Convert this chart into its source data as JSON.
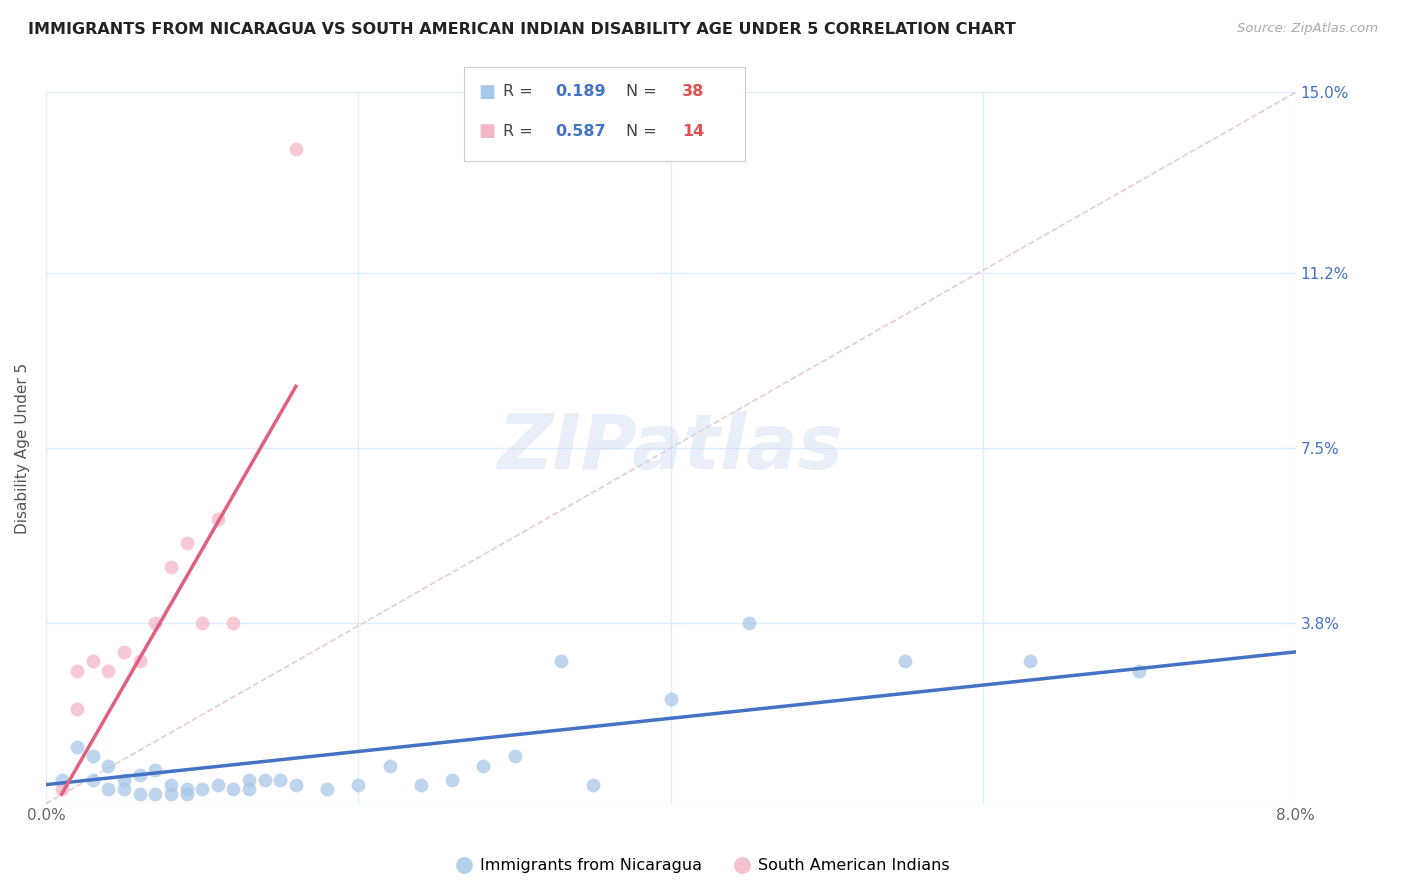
{
  "title": "IMMIGRANTS FROM NICARAGUA VS SOUTH AMERICAN INDIAN DISABILITY AGE UNDER 5 CORRELATION CHART",
  "source": "Source: ZipAtlas.com",
  "ylabel": "Disability Age Under 5",
  "xlim": [
    0.0,
    0.08
  ],
  "ylim": [
    0.0,
    0.15
  ],
  "watermark": "ZIPatlas",
  "blue_color": "#a8c8e8",
  "blue_line_color": "#4472c4",
  "pink_color": "#f4b8c8",
  "pink_line_color": "#e06080",
  "diag_color": "#e8c0c8",
  "blue_R": "0.189",
  "blue_N": "38",
  "pink_R": "0.587",
  "pink_N": "14",
  "R_color": "#4472c4",
  "N_color": "#e05050",
  "legend_labels": [
    "Immigrants from Nicaragua",
    "South American Indians"
  ],
  "background_color": "#ffffff",
  "grid_color": "#ddeeff",
  "title_fontsize": 11.5,
  "tick_fontsize": 11,
  "blue_scatter_x": [
    0.001,
    0.002,
    0.003,
    0.003,
    0.004,
    0.004,
    0.005,
    0.005,
    0.006,
    0.006,
    0.007,
    0.007,
    0.008,
    0.008,
    0.009,
    0.009,
    0.01,
    0.011,
    0.012,
    0.013,
    0.013,
    0.014,
    0.015,
    0.016,
    0.018,
    0.02,
    0.022,
    0.024,
    0.026,
    0.028,
    0.03,
    0.033,
    0.035,
    0.04,
    0.045,
    0.055,
    0.063,
    0.07
  ],
  "blue_scatter_y": [
    0.005,
    0.012,
    0.005,
    0.01,
    0.003,
    0.008,
    0.003,
    0.005,
    0.002,
    0.006,
    0.002,
    0.007,
    0.002,
    0.004,
    0.002,
    0.003,
    0.003,
    0.004,
    0.003,
    0.003,
    0.005,
    0.005,
    0.005,
    0.004,
    0.003,
    0.004,
    0.008,
    0.004,
    0.005,
    0.008,
    0.01,
    0.03,
    0.004,
    0.022,
    0.038,
    0.03,
    0.03,
    0.028
  ],
  "pink_scatter_x": [
    0.001,
    0.002,
    0.002,
    0.003,
    0.004,
    0.005,
    0.006,
    0.007,
    0.008,
    0.009,
    0.01,
    0.011,
    0.012,
    0.016
  ],
  "pink_scatter_y": [
    0.003,
    0.02,
    0.028,
    0.03,
    0.028,
    0.032,
    0.03,
    0.038,
    0.05,
    0.055,
    0.038,
    0.06,
    0.038,
    0.138
  ],
  "blue_trend_x": [
    0.0,
    0.08
  ],
  "blue_trend_y": [
    0.004,
    0.032
  ],
  "pink_trend_x": [
    0.001,
    0.016
  ],
  "pink_trend_y": [
    0.002,
    0.088
  ]
}
